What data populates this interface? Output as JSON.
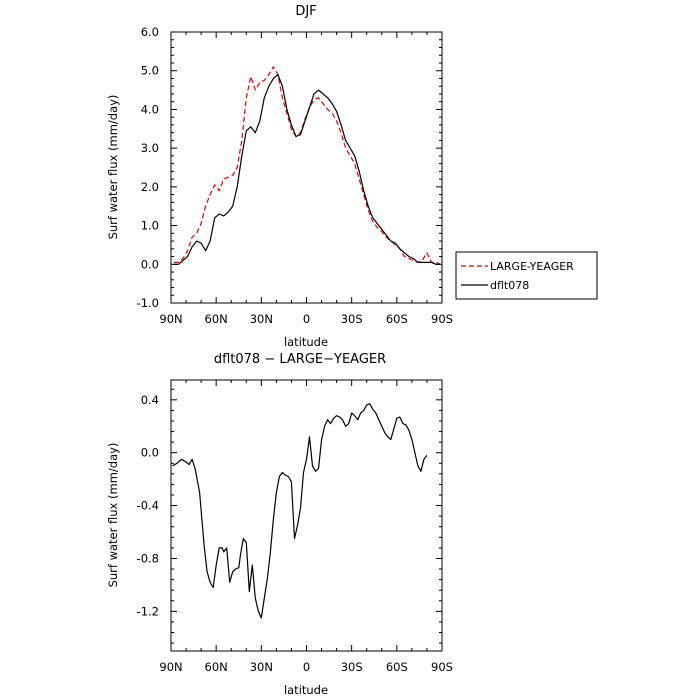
{
  "chart_data": [
    {
      "type": "line",
      "title": "DJF",
      "xlabel": "latitude",
      "ylabel": "Surf water flux (mm/day)",
      "xlim": [
        90,
        -90
      ],
      "ylim": [
        -1.0,
        6.0
      ],
      "xticks": [
        90,
        60,
        30,
        0,
        -30,
        -60,
        -90
      ],
      "xtick_labels": [
        "90N",
        "60N",
        "30N",
        "0",
        "30S",
        "60S",
        "90S"
      ],
      "yticks": [
        -1.0,
        0.0,
        1.0,
        2.0,
        3.0,
        4.0,
        5.0,
        6.0
      ],
      "ytick_labels": [
        "-1.0",
        "0.0",
        "1.0",
        "2.0",
        "3.0",
        "4.0",
        "5.0",
        "6.0"
      ],
      "grid": false,
      "legend_position": "right",
      "series": [
        {
          "name": "LARGE-YEAGER",
          "color": "#e00000",
          "style": "dashed",
          "x": [
            88,
            85,
            82,
            79,
            76,
            73,
            70,
            67,
            64,
            61,
            58,
            55,
            52,
            49,
            46,
            43,
            40,
            37,
            34,
            31,
            28,
            25,
            22,
            19,
            16,
            13,
            10,
            7,
            4,
            1,
            -2,
            -5,
            -8,
            -11,
            -14,
            -17,
            -20,
            -23,
            -26,
            -29,
            -32,
            -35,
            -38,
            -41,
            -44,
            -47,
            -50,
            -53,
            -56,
            -59,
            -62,
            -65,
            -68,
            -71,
            -74,
            -77,
            -80,
            -83,
            -86,
            -89
          ],
          "y": [
            0.05,
            0.05,
            0.15,
            0.35,
            0.7,
            0.8,
            1.05,
            1.5,
            1.8,
            2.05,
            1.9,
            2.2,
            2.25,
            2.3,
            2.5,
            3.2,
            4.3,
            4.85,
            4.5,
            4.7,
            4.75,
            4.9,
            5.1,
            4.9,
            4.3,
            3.9,
            3.5,
            3.3,
            3.4,
            3.75,
            4.05,
            4.25,
            4.3,
            4.15,
            4.0,
            3.9,
            3.7,
            3.4,
            3.0,
            2.8,
            2.6,
            2.2,
            1.8,
            1.4,
            1.1,
            0.95,
            0.85,
            0.7,
            0.6,
            0.5,
            0.4,
            0.2,
            0.15,
            0.1,
            0.05,
            0.1,
            0.3,
            0.05,
            0.05,
            0.0
          ]
        },
        {
          "name": "dflt078",
          "color": "#000000",
          "style": "solid",
          "x": [
            88,
            85,
            82,
            79,
            76,
            73,
            70,
            67,
            64,
            61,
            58,
            55,
            52,
            49,
            46,
            43,
            40,
            37,
            34,
            31,
            28,
            25,
            22,
            19,
            16,
            13,
            10,
            7,
            4,
            1,
            -2,
            -5,
            -8,
            -11,
            -14,
            -17,
            -20,
            -23,
            -26,
            -29,
            -32,
            -35,
            -38,
            -41,
            -44,
            -47,
            -50,
            -53,
            -56,
            -59,
            -62,
            -65,
            -68,
            -71,
            -74,
            -77,
            -80,
            -83,
            -86,
            -89
          ],
          "y": [
            0.0,
            0.0,
            0.1,
            0.2,
            0.45,
            0.6,
            0.55,
            0.35,
            0.6,
            1.2,
            1.3,
            1.25,
            1.35,
            1.5,
            2.0,
            2.8,
            3.45,
            3.55,
            3.4,
            3.7,
            4.3,
            4.6,
            4.8,
            4.9,
            4.6,
            4.0,
            3.6,
            3.3,
            3.35,
            3.7,
            4.05,
            4.4,
            4.5,
            4.4,
            4.3,
            4.15,
            3.95,
            3.6,
            3.2,
            3.0,
            2.8,
            2.4,
            1.9,
            1.5,
            1.2,
            1.05,
            0.9,
            0.75,
            0.6,
            0.55,
            0.4,
            0.3,
            0.2,
            0.15,
            0.05,
            0.05,
            0.05,
            0.05,
            0.0,
            0.0
          ]
        }
      ]
    },
    {
      "type": "line",
      "title": "dflt078 − LARGE−YEAGER",
      "xlabel": "latitude",
      "ylabel": "Surf water flux (mm/day)",
      "xlim": [
        90,
        -90
      ],
      "ylim": [
        -1.5,
        0.55
      ],
      "xticks": [
        90,
        60,
        30,
        0,
        -30,
        -60,
        -90
      ],
      "xtick_labels": [
        "90N",
        "60N",
        "30N",
        "0",
        "30S",
        "60S",
        "90S"
      ],
      "yticks": [
        -1.2,
        -0.8,
        -0.4,
        0.0,
        0.4
      ],
      "ytick_labels": [
        "-1.2",
        "-0.8",
        "-0.4",
        "0.0",
        "0.4"
      ],
      "grid": false,
      "series": [
        {
          "color": "#000000",
          "style": "solid",
          "x": [
            89,
            86,
            83,
            80,
            78,
            76,
            74,
            71,
            68,
            66,
            64,
            62,
            60,
            58,
            56,
            55,
            53,
            51,
            49,
            47,
            45,
            44,
            42,
            40,
            38,
            36,
            34,
            32,
            30,
            28,
            26,
            24,
            22,
            20,
            18,
            16,
            14,
            12,
            10,
            8,
            6,
            4,
            2,
            0,
            -2,
            -4,
            -6,
            -8,
            -10,
            -12,
            -14,
            -16,
            -18,
            -20,
            -22,
            -24,
            -26,
            -28,
            -30,
            -32,
            -34,
            -36,
            -38,
            -40,
            -42,
            -44,
            -46,
            -48,
            -50,
            -52,
            -54,
            -56,
            -58,
            -60,
            -62,
            -64,
            -66,
            -68,
            -70,
            -72,
            -74,
            -76,
            -78,
            -80
          ],
          "y": [
            -0.1,
            -0.08,
            -0.05,
            -0.07,
            -0.09,
            -0.05,
            -0.12,
            -0.3,
            -0.7,
            -0.9,
            -0.98,
            -1.02,
            -0.85,
            -0.72,
            -0.72,
            -0.75,
            -0.72,
            -0.98,
            -0.9,
            -0.88,
            -0.87,
            -0.78,
            -0.65,
            -0.68,
            -1.05,
            -0.85,
            -1.1,
            -1.2,
            -1.25,
            -1.1,
            -0.95,
            -0.75,
            -0.5,
            -0.3,
            -0.18,
            -0.15,
            -0.17,
            -0.18,
            -0.22,
            -0.65,
            -0.55,
            -0.42,
            -0.15,
            -0.05,
            0.12,
            -0.1,
            -0.14,
            -0.12,
            0.1,
            0.2,
            0.25,
            0.22,
            0.26,
            0.28,
            0.27,
            0.25,
            0.2,
            0.22,
            0.3,
            0.28,
            0.25,
            0.3,
            0.32,
            0.36,
            0.37,
            0.33,
            0.3,
            0.25,
            0.2,
            0.15,
            0.12,
            0.1,
            0.18,
            0.26,
            0.27,
            0.22,
            0.21,
            0.17,
            0.1,
            0.0,
            -0.1,
            -0.14,
            -0.05,
            -0.02
          ]
        }
      ]
    }
  ],
  "legend": {
    "entries": [
      "LARGE-YEAGER",
      "dflt078"
    ]
  }
}
